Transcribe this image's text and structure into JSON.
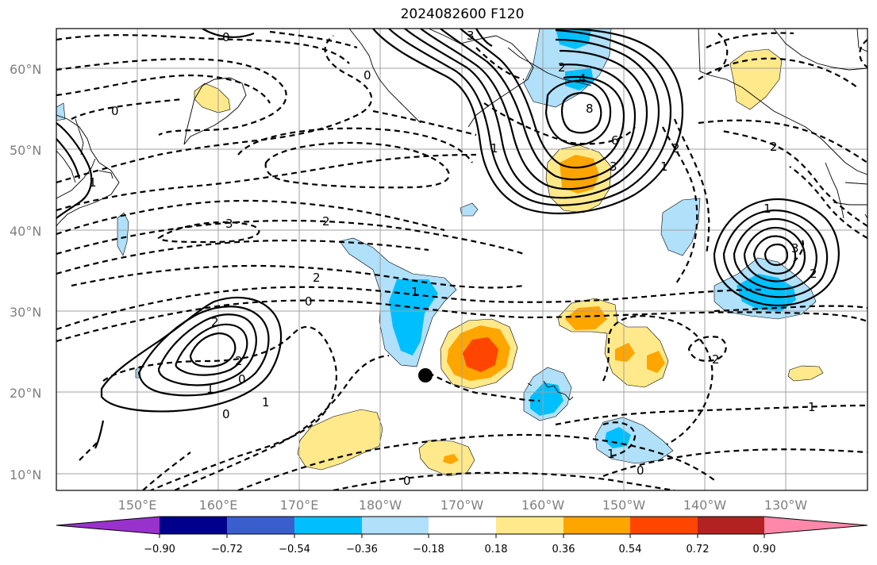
{
  "title": "2024082600 F120",
  "lat_labels": [
    "60°N",
    "50°N",
    "40°N",
    "30°N",
    "20°N",
    "10°N"
  ],
  "lon_labels": [
    "150°E",
    "160°E",
    "170°E",
    "180°W",
    "170°W",
    "160°W",
    "150°W",
    "140°W",
    "130°W"
  ],
  "colorbar": {
    "colors": [
      "#9932cc",
      "#00008b",
      "#3a5fcd",
      "#00bfff",
      "#b0e0fa",
      "#ffffff",
      "#ffe98a",
      "#ffa500",
      "#ff4500",
      "#b22222",
      "#ff88aa"
    ],
    "tick_labels": [
      "−0.90",
      "−0.72",
      "−0.54",
      "−0.36",
      "−0.18",
      "0.18",
      "0.36",
      "0.54",
      "0.72",
      "0.90"
    ]
  },
  "contour_labels": [
    "0",
    "0",
    "0",
    "0",
    "0",
    "0",
    "0",
    "0",
    "1",
    "1",
    "1",
    "1",
    "1",
    "1",
    "1",
    "1",
    "1",
    "2",
    "2",
    "2",
    "2",
    "2",
    "2",
    "2",
    "2",
    "2",
    "3",
    "3",
    "3",
    "3",
    "4",
    "6",
    "8"
  ],
  "marker": "storm-position-dot"
}
